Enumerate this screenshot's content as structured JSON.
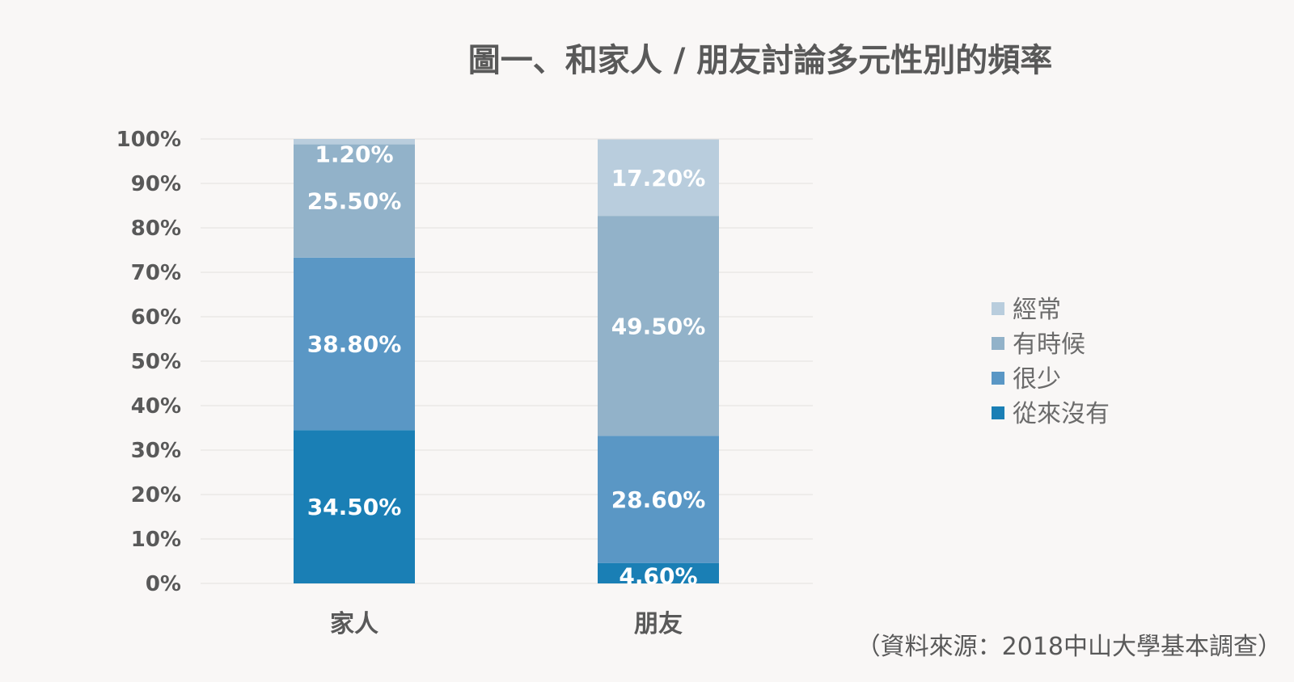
{
  "chart_data": {
    "type": "bar",
    "stacked": true,
    "title": "圖一、和家人 / 朋友討論多元性別的頻率",
    "categories": [
      "家人",
      "朋友"
    ],
    "series": [
      {
        "name": "從來沒有",
        "values": [
          34.5,
          4.6
        ],
        "labels": [
          "34.50%",
          "4.60%"
        ],
        "color": "#1a7fb5"
      },
      {
        "name": "很少",
        "values": [
          38.8,
          28.6
        ],
        "labels": [
          "38.80%",
          "28.60%"
        ],
        "color": "#5a97c5"
      },
      {
        "name": "有時候",
        "values": [
          25.5,
          49.5
        ],
        "labels": [
          "25.50%",
          "49.50%"
        ],
        "color": "#92b2c9"
      },
      {
        "name": "經常",
        "values": [
          1.2,
          17.2
        ],
        "labels": [
          "1.20%",
          "17.20%"
        ],
        "color": "#b9cddd"
      }
    ],
    "yticks": [
      "0%",
      "10%",
      "20%",
      "30%",
      "40%",
      "50%",
      "60%",
      "70%",
      "80%",
      "90%",
      "100%"
    ],
    "ylim": [
      0,
      100
    ],
    "grid": true,
    "legend": {
      "position": "right",
      "order": [
        "經常",
        "有時候",
        "很少",
        "從來沒有"
      ]
    },
    "source": "（資料來源：2018中山大學基本調查）"
  }
}
